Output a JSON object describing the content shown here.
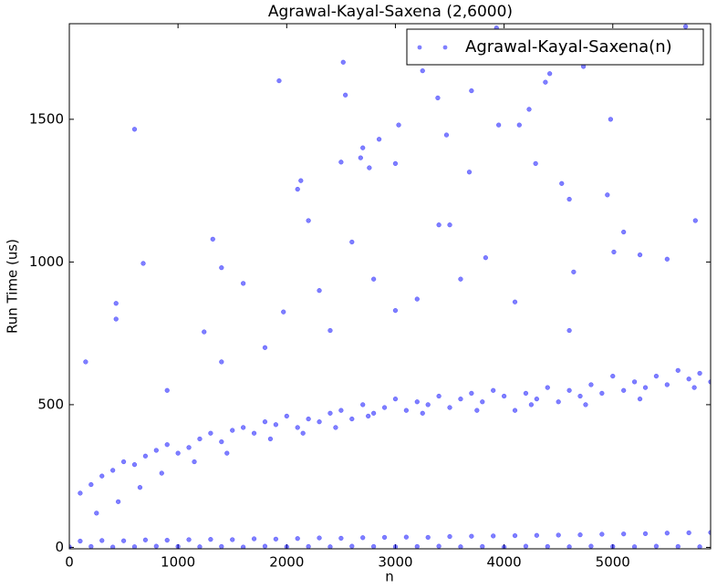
{
  "chart_data": {
    "type": "scatter",
    "title": "Agrawal-Kayal-Saxena (2,6000)",
    "x_label": "n",
    "y_label": "Run Time (us)",
    "xlim": [
      0,
      5900
    ],
    "ylim": [
      -5,
      1835
    ],
    "xticks": [
      0,
      1000,
      2000,
      3000,
      4000,
      5000
    ],
    "yticks": [
      0,
      500,
      1000,
      1500
    ],
    "legend_position": "upper right",
    "series": [
      {
        "name": "Agrawal-Kayal-Saxena(n)",
        "color": "#0000ff",
        "x": [
          0,
          200,
          400,
          600,
          800,
          1000,
          1200,
          1400,
          1600,
          1800,
          2000,
          2200,
          2400,
          2600,
          2800,
          3000,
          3200,
          3400,
          3600,
          3800,
          4000,
          4200,
          4400,
          4600,
          4800,
          5000,
          5200,
          5400,
          5600,
          5800,
          100,
          300,
          500,
          700,
          900,
          1100,
          1300,
          1500,
          1700,
          1900,
          2100,
          2300,
          2500,
          2700,
          2900,
          3100,
          3300,
          3500,
          3700,
          3900,
          4100,
          4300,
          4500,
          4700,
          4900,
          5100,
          5300,
          5500,
          5700,
          5900,
          100,
          200,
          300,
          400,
          500,
          600,
          700,
          800,
          900,
          1000,
          1100,
          1200,
          1300,
          1400,
          1500,
          1600,
          1700,
          1800,
          1900,
          2000,
          2100,
          2200,
          2300,
          2400,
          2500,
          2600,
          2700,
          2800,
          2900,
          3000,
          3100,
          3200,
          3300,
          3400,
          3500,
          3600,
          3700,
          3800,
          3900,
          4000,
          4100,
          4200,
          4300,
          4400,
          4500,
          4600,
          4700,
          4800,
          4900,
          5000,
          5100,
          5200,
          5300,
          5400,
          5500,
          5600,
          5700,
          5800,
          5900,
          250,
          450,
          650,
          850,
          1150,
          1450,
          1850,
          2150,
          2450,
          2750,
          3250,
          3750,
          4250,
          4750,
          5250,
          5750,
          600,
          680,
          430,
          430,
          1320,
          1400,
          1930,
          2100,
          2130,
          2200,
          2500,
          2520,
          2540,
          2600,
          2680,
          2700,
          2760,
          2850,
          2800,
          3030,
          3000,
          3250,
          3390,
          3470,
          3400,
          3500,
          3700,
          3680,
          3830,
          3930,
          3950,
          4140,
          4230,
          4290,
          4380,
          4420,
          4530,
          4600,
          4640,
          4730,
          4980,
          4950,
          5010,
          5100,
          5250,
          5500,
          5670,
          5760,
          1600,
          1970,
          2300,
          3200,
          3600,
          1240,
          1800,
          2400,
          3000,
          4100,
          4600,
          150,
          900,
          1400
        ],
        "values": [
          2,
          3,
          1,
          2,
          4,
          3,
          2,
          3,
          1,
          4,
          2,
          3,
          2,
          4,
          3,
          2,
          3,
          4,
          2,
          3,
          1,
          4,
          3,
          2,
          4,
          3,
          2,
          4,
          3,
          2,
          22,
          24,
          23,
          26,
          25,
          27,
          28,
          27,
          30,
          29,
          31,
          33,
          32,
          34,
          35,
          36,
          35,
          38,
          39,
          40,
          41,
          42,
          43,
          44,
          46,
          47,
          48,
          50,
          51,
          52,
          190,
          220,
          250,
          270,
          300,
          290,
          320,
          340,
          360,
          330,
          350,
          380,
          400,
          370,
          410,
          420,
          400,
          440,
          430,
          460,
          420,
          450,
          440,
          470,
          480,
          450,
          500,
          470,
          490,
          520,
          480,
          510,
          500,
          530,
          490,
          520,
          540,
          510,
          550,
          530,
          480,
          540,
          520,
          560,
          510,
          550,
          530,
          570,
          540,
          600,
          550,
          580,
          560,
          600,
          570,
          620,
          590,
          610,
          580,
          120,
          160,
          210,
          260,
          300,
          330,
          380,
          400,
          420,
          460,
          470,
          480,
          500,
          500,
          520,
          560,
          1465,
          995,
          855,
          800,
          1080,
          980,
          1635,
          1255,
          1285,
          1145,
          1350,
          1700,
          1585,
          1070,
          1365,
          1400,
          1330,
          1430,
          940,
          1480,
          1345,
          1670,
          1575,
          1445,
          1130,
          1130,
          1600,
          1315,
          1015,
          1820,
          1480,
          1480,
          1535,
          1345,
          1630,
          1660,
          1275,
          1220,
          965,
          1685,
          1500,
          1235,
          1035,
          1105,
          1025,
          1010,
          1825,
          1145,
          925,
          825,
          900,
          870,
          940,
          755,
          700,
          760,
          830,
          860,
          760,
          650,
          550,
          650
        ]
      }
    ]
  }
}
